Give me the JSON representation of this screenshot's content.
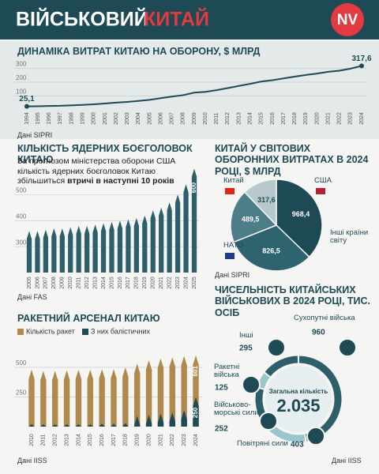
{
  "header": {
    "title": "ВІЙСЬКОВИЙ",
    "title_highlight": "КИТАЙ",
    "logo": "NV"
  },
  "chart_data": [
    {
      "type": "line",
      "title": "ДИНАМІКА ВИТРАТ КИТАЮ НА ОБОРОНУ, $ МЛРД",
      "categories": [
        "1994",
        "1995",
        "1996",
        "1997",
        "1998",
        "1999",
        "2000",
        "2001",
        "2002",
        "2003",
        "2004",
        "2005",
        "2006",
        "2007",
        "2008",
        "2009",
        "2010",
        "2011",
        "2012",
        "2013",
        "2014",
        "2015",
        "2016",
        "2017",
        "2018",
        "2019",
        "2020",
        "2021",
        "2022",
        "2023",
        "2024"
      ],
      "values": [
        25.1,
        26,
        28,
        29,
        32,
        36,
        40,
        46,
        52,
        57,
        64,
        72,
        84,
        96,
        106,
        124,
        130,
        142,
        157,
        173,
        188,
        204,
        214,
        227,
        240,
        252,
        262,
        275,
        283,
        298,
        317.6
      ],
      "value_labels": [
        "25,1",
        null,
        null,
        null,
        null,
        null,
        null,
        null,
        null,
        null,
        null,
        null,
        null,
        null,
        null,
        null,
        null,
        null,
        null,
        null,
        null,
        null,
        null,
        null,
        null,
        null,
        null,
        null,
        null,
        null,
        "317,6"
      ],
      "color": "#1e4a55",
      "ylim": [
        0,
        320
      ],
      "yticks": [
        100,
        200,
        300
      ],
      "grid": true,
      "source": "Дані SIPRI"
    },
    {
      "type": "missile-bar",
      "title": "КІЛЬКІСТЬ ЯДЕРНИХ БОЄГОЛОВОК КИТАЮ",
      "subtitle": "За прогнозом міністерства оборони США кількість ядерних боєголовок Китаю збільшиться",
      "subtitle_emphasis": "втричі в наступні 10 років",
      "categories": [
        "2005",
        "2006",
        "2007",
        "2008",
        "2009",
        "2010",
        "2011",
        "2012",
        "2013",
        "2014",
        "2015",
        "2016",
        "2017",
        "2018",
        "2019",
        "2020",
        "2021",
        "2022",
        "2023",
        "2024",
        "2025"
      ],
      "values": [
        360,
        360,
        365,
        370,
        370,
        375,
        380,
        380,
        385,
        390,
        395,
        400,
        405,
        410,
        420,
        440,
        450,
        470,
        500,
        540,
        600
      ],
      "value_labels": [
        null,
        null,
        null,
        null,
        null,
        null,
        null,
        null,
        null,
        null,
        null,
        null,
        null,
        null,
        null,
        null,
        null,
        null,
        null,
        null,
        "600"
      ],
      "color": "#2d5f6b",
      "ylim": [
        200,
        620
      ],
      "yticks": [
        300,
        400,
        500
      ],
      "grid": true,
      "source": "Дані FAS"
    },
    {
      "type": "pie",
      "title": "КИТАЙ У СВІТОВИХ ОБОРОННИХ ВИТРАТАХ В 2024 РОЦІ, $ МЛРД",
      "categories": [
        "США",
        "Інші країни світу",
        "НАТО",
        "Китай"
      ],
      "values": [
        968.4,
        826.5,
        489.5,
        317.6
      ],
      "value_labels": [
        "968,4",
        "826,5",
        "489,5",
        "317,6"
      ],
      "colors": [
        "#1e4a55",
        "#2e6470",
        "#4d7d88",
        "#b7c9cd"
      ],
      "source": "Дані SIPRI"
    },
    {
      "type": "missile-overlay",
      "title": "РАКЕТНИЙ АРСЕНАЛ КИТАЮ",
      "categories": [
        "2010",
        "2011",
        "2012",
        "2013",
        "2014",
        "2015",
        "2016",
        "2017",
        "2018",
        "2019",
        "2020",
        "2021",
        "2022",
        "2023",
        "2024"
      ],
      "series": [
        {
          "name": "Кількість ракет",
          "color": "#b08a4c",
          "values": [
            480,
            470,
            470,
            475,
            480,
            480,
            485,
            485,
            500,
            530,
            560,
            575,
            585,
            595,
            601
          ],
          "value_labels": [
            null,
            null,
            null,
            null,
            null,
            null,
            null,
            null,
            null,
            null,
            null,
            null,
            null,
            null,
            "601"
          ]
        },
        {
          "name": "З них балістичних",
          "color": "#1e4a55",
          "values": [
            20,
            20,
            20,
            20,
            20,
            20,
            25,
            25,
            30,
            90,
            100,
            110,
            120,
            140,
            250
          ],
          "value_labels": [
            null,
            null,
            null,
            null,
            null,
            null,
            null,
            null,
            null,
            null,
            null,
            null,
            null,
            null,
            "250"
          ]
        }
      ],
      "ylim": [
        0,
        780
      ],
      "yticks": [
        250,
        500
      ],
      "grid": true,
      "source": "Дані IISS"
    },
    {
      "type": "donut",
      "title": "ЧИСЕЛЬНІСТЬ КИТАЙСЬКИХ ВІЙСЬКОВИХ В 2024 РОЦІ, ТИС. ОСІБ",
      "categories": [
        "Сухопутні війська",
        "Повітряні сили",
        "Військово-морські сили",
        "Ракетні війська",
        "Інші"
      ],
      "values": [
        960,
        403,
        252,
        125,
        295
      ],
      "colors": [
        "#2d5f6b",
        "#9cc4cd",
        "#2d5f6b",
        "#9cc4cd",
        "#2d5f6b"
      ],
      "total_label": "Загальна кількість",
      "total": {
        "value": 2035,
        "label": "2.035"
      },
      "source": "Дані IISS"
    }
  ]
}
